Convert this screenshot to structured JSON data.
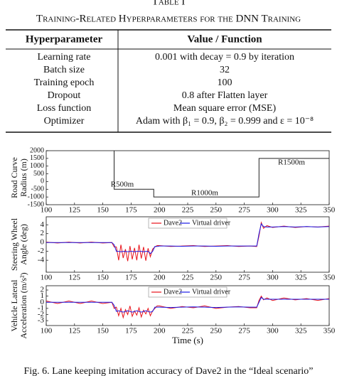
{
  "table_label": "Table I",
  "table": {
    "title": "Training-Related Hyperparameters for the DNN Training",
    "header": [
      "Hyperparameter",
      "Value / Function"
    ],
    "rows": [
      [
        "Learning rate",
        "0.001 with decay = 0.9 by iteration"
      ],
      [
        "Batch size",
        "32"
      ],
      [
        "Training epoch",
        "100"
      ],
      [
        "Dropout",
        "0.8 after Flatten layer"
      ],
      [
        "Loss function",
        "Mean square error (MSE)"
      ],
      [
        "Optimizer",
        "Adam with β₁ = 0.9, β₂ = 0.999 and ε = 10⁻⁸"
      ]
    ]
  },
  "chart_data": [
    {
      "type": "line",
      "ylabel": [
        "Road Curve",
        "Radius (m)"
      ],
      "x": [
        160,
        160,
        195,
        195,
        288,
        288,
        350
      ],
      "values": [
        2000,
        -500,
        -500,
        -1000,
        -1000,
        1500,
        1500
      ],
      "color": "#222222",
      "xlim": [
        100,
        350
      ],
      "xticks": [
        100,
        125,
        150,
        175,
        200,
        225,
        250,
        275,
        300,
        325,
        350
      ],
      "ylim": [
        -1500,
        2000
      ],
      "yticks": [
        -1500,
        -1000,
        -500,
        0,
        500,
        1000,
        1500,
        2000
      ],
      "annotations": [
        "R500m",
        "R1000m",
        "R1500m"
      ],
      "grid": false
    },
    {
      "type": "line",
      "ylabel": [
        "Steering Wheel",
        "Angle (deg)"
      ],
      "legend": "upper center",
      "x": [
        100,
        110,
        120,
        130,
        140,
        150,
        158,
        160,
        162,
        164,
        166,
        168,
        170,
        172,
        174,
        176,
        178,
        180,
        182,
        184,
        186,
        188,
        190,
        192,
        194,
        196,
        198,
        200,
        210,
        220,
        230,
        240,
        250,
        260,
        270,
        280,
        286,
        288,
        290,
        292,
        295,
        300,
        310,
        320,
        330,
        340,
        350
      ],
      "series": [
        {
          "name": "Dave2",
          "color": "#e8121b",
          "values": [
            0.1,
            -0.1,
            0.1,
            -0.1,
            0.1,
            -0.1,
            0,
            -1,
            -1,
            -4,
            -0.5,
            -3.5,
            -1.5,
            -4.2,
            -0.8,
            -3.8,
            -1.2,
            -4,
            -0.5,
            -3.6,
            -1,
            -4.1,
            -1.3,
            -3.2,
            -1.5,
            -1,
            -0.7,
            -0.7,
            -0.9,
            -0.8,
            -0.7,
            -0.9,
            -0.8,
            -0.7,
            -0.9,
            -0.8,
            -0.9,
            1.5,
            4.5,
            3.2,
            3.8,
            3.4,
            3.7,
            3.4,
            3.6,
            3.5,
            3.7
          ]
        },
        {
          "name": "Virtual driver",
          "color": "#1a1ae6",
          "values": [
            0,
            0,
            0,
            0,
            0,
            0,
            0,
            -0.5,
            -2,
            -2,
            -2.1,
            -2,
            -2,
            -2.1,
            -2,
            -2,
            -2.1,
            -2,
            -2,
            -2,
            -2.1,
            -2,
            -2,
            -2.5,
            -2,
            -0.9,
            -0.9,
            -0.8,
            -0.8,
            -0.85,
            -0.8,
            -0.8,
            -0.85,
            -0.8,
            -0.8,
            -0.8,
            -0.8,
            2,
            4.2,
            3.6,
            3.5,
            3.5,
            3.6,
            3.5,
            3.6,
            3.5,
            3.6
          ]
        }
      ],
      "xlim": [
        100,
        350
      ],
      "xticks": [
        100,
        125,
        150,
        175,
        200,
        225,
        250,
        275,
        300,
        325,
        350
      ],
      "ylim": [
        -6.7,
        5.8
      ],
      "yticks": [
        -4,
        -2,
        0,
        2,
        4
      ],
      "grid": false
    },
    {
      "type": "line",
      "ylabel": [
        "Vehicle Lateral",
        "Acceleration (m/s²)"
      ],
      "legend": "upper center",
      "x": [
        100,
        110,
        120,
        130,
        140,
        150,
        158,
        160,
        162,
        164,
        166,
        168,
        170,
        172,
        174,
        176,
        178,
        180,
        182,
        184,
        186,
        188,
        190,
        192,
        194,
        196,
        198,
        200,
        210,
        220,
        230,
        240,
        250,
        260,
        270,
        280,
        286,
        288,
        290,
        292,
        295,
        300,
        310,
        320,
        330,
        340,
        350
      ],
      "series": [
        {
          "name": "Dave2",
          "color": "#e8121b",
          "values": [
            0.2,
            -0.2,
            0.2,
            -0.2,
            0.2,
            -0.2,
            0,
            -1,
            -0.8,
            -2.2,
            -1,
            -2.5,
            -1.2,
            -2,
            -0.6,
            -2.3,
            -1.4,
            -2.1,
            -0.9,
            -2.4,
            -1.3,
            -1.9,
            -1,
            -2.2,
            -1.4,
            -1,
            -0.6,
            -0.6,
            -1,
            -0.7,
            -0.9,
            -0.6,
            -1,
            -0.8,
            -0.7,
            -0.9,
            -0.9,
            0.3,
            1,
            0.4,
            0.7,
            0.3,
            0.7,
            0.4,
            0.6,
            0.3,
            0.6
          ]
        },
        {
          "name": "Virtual driver",
          "color": "#1a1ae6",
          "values": [
            0,
            0,
            0,
            0,
            0,
            0,
            0,
            -0.5,
            -1.5,
            -1.4,
            -1.5,
            -1.6,
            -1.5,
            -1.4,
            -1.5,
            -1.6,
            -1.5,
            -1.4,
            -1.5,
            -1.6,
            -1.5,
            -1.4,
            -1.5,
            -1.6,
            -1.5,
            -0.8,
            -0.8,
            -0.8,
            -0.85,
            -0.8,
            -0.75,
            -0.8,
            -0.85,
            -0.8,
            -0.75,
            -0.8,
            -0.8,
            0,
            0.8,
            0.5,
            0.5,
            0.5,
            0.5,
            0.5,
            0.5,
            0.5,
            0.5
          ]
        }
      ],
      "xlim": [
        100,
        350
      ],
      "xticks": [
        100,
        125,
        150,
        175,
        200,
        225,
        250,
        275,
        300,
        325,
        350
      ],
      "ylim": [
        -3.8,
        2.7
      ],
      "yticks": [
        -3,
        -2,
        -1,
        0,
        1,
        2
      ],
      "xlabel": "Time (s)",
      "grid": false
    }
  ],
  "caption": "Fig. 6.   Lane keeping imitation accuracy of Dave2 in the “Ideal scenario”"
}
